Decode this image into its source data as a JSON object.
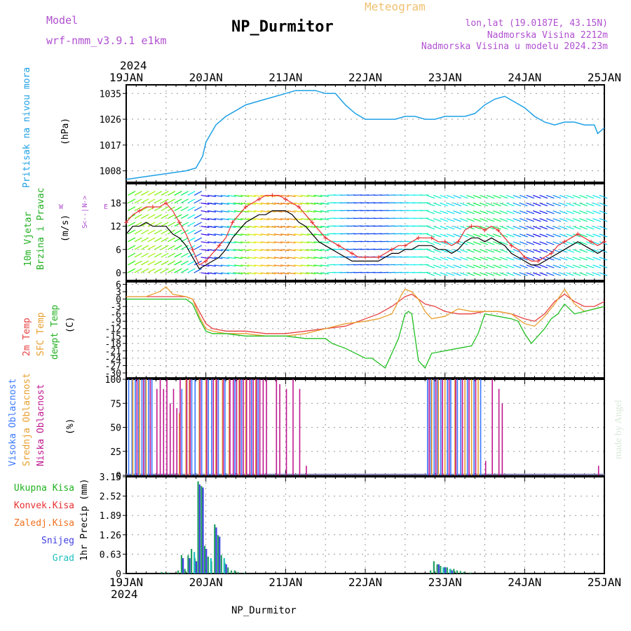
{
  "header": {
    "model_label": "Model",
    "model_name": "wrf-nmm_v3.9.1 e1km",
    "station": "NP_Durmitor",
    "product": "Meteogram",
    "lonlat": "lon,lat (19.0187E, 43.15N)",
    "elevation": "Nadmorska Visina 2212m",
    "model_elevation": "Nadmorska Visina u modelu 2024.23m",
    "year": "2024",
    "footer_station": "NP_Durmitor",
    "credit": "made by Angel"
  },
  "colors": {
    "pressure": "#1ea0e6",
    "wind_speed": "#000000",
    "gust": "#e83030",
    "temp2m": "#e84040",
    "sfc_temp": "#e8a030",
    "dewpoint": "#20c020",
    "high_cloud": "#3a78ff",
    "mid_cloud": "#e8a030",
    "low_cloud": "#c01890",
    "total_precip": "#20a060",
    "conv_precip": "#e83030",
    "freezing_rain": "#f07020",
    "snow": "#4040e0",
    "graupel": "#20c0c0",
    "label_purple": "#b050d0",
    "label_blue": "#1ea0e6",
    "label_green": "#20b020"
  },
  "chart_data": [
    {
      "type": "line",
      "panel": "pressure",
      "ylabel": "(hPa)",
      "side_label": "Pritisak na nivou mora",
      "yticks": [
        1008,
        1017,
        1026,
        1035
      ],
      "ylim": [
        1004,
        1038
      ],
      "xlim_hours": [
        0,
        144
      ],
      "xtick_labels": [
        "19JAN",
        "20JAN",
        "21JAN",
        "22JAN",
        "23JAN",
        "24JAN",
        "25JAN"
      ],
      "grid": true,
      "series": [
        {
          "x": [
            0,
            6,
            12,
            18,
            21,
            23,
            24,
            25,
            27,
            30,
            33,
            36,
            39,
            42,
            45,
            48,
            51,
            54,
            57,
            60,
            63,
            66,
            69,
            72,
            75,
            78,
            81,
            84,
            87,
            90,
            93,
            96,
            99,
            102,
            105,
            108,
            111,
            114,
            117,
            120,
            123,
            126,
            129,
            132,
            135,
            138,
            141,
            142,
            144
          ],
          "y": [
            1005,
            1006,
            1007,
            1008,
            1009,
            1013,
            1018,
            1020,
            1024,
            1027,
            1029,
            1031,
            1032,
            1033,
            1034,
            1035,
            1036,
            1036,
            1036,
            1035,
            1035,
            1031,
            1028,
            1026,
            1026,
            1026,
            1026,
            1027,
            1027,
            1026,
            1026,
            1027,
            1027,
            1027,
            1028,
            1031,
            1033,
            1034,
            1032,
            1030,
            1027,
            1025,
            1024,
            1025,
            1025,
            1024,
            1024,
            1021,
            1023
          ]
        }
      ]
    },
    {
      "type": "line",
      "panel": "wind",
      "ylabel": "(m/s)",
      "side_label": "10m Vjetar Brzina i Pravac",
      "compass": [
        "N",
        "E",
        "W",
        "S"
      ],
      "yticks": [
        0,
        6,
        12,
        18
      ],
      "ylim": [
        -2,
        23
      ],
      "grid": true,
      "series": [
        {
          "name": "speed",
          "x": [
            0,
            2,
            4,
            6,
            8,
            10,
            12,
            14,
            16,
            18,
            20,
            22,
            24,
            26,
            28,
            30,
            32,
            34,
            36,
            38,
            40,
            42,
            44,
            46,
            48,
            50,
            52,
            54,
            56,
            58,
            60,
            62,
            64,
            66,
            68,
            70,
            72,
            74,
            76,
            78,
            80,
            82,
            84,
            86,
            88,
            90,
            92,
            94,
            96,
            98,
            100,
            102,
            104,
            106,
            108,
            110,
            112,
            114,
            116,
            118,
            120,
            122,
            124,
            126,
            128,
            130,
            132,
            134,
            136,
            138,
            140,
            142,
            144
          ],
          "y": [
            10,
            12,
            12,
            13,
            12,
            12,
            12,
            10,
            9,
            7,
            4,
            1,
            2,
            3,
            4,
            6,
            9,
            11,
            13,
            14,
            15,
            15,
            16,
            16,
            16,
            15,
            13,
            12,
            10,
            8,
            7,
            6,
            5,
            4,
            3,
            3,
            3,
            3,
            3,
            4,
            5,
            5,
            6,
            6,
            7,
            7,
            7,
            6,
            6,
            5,
            6,
            8,
            9,
            9,
            8,
            9,
            8,
            7,
            5,
            4,
            3,
            2,
            2,
            3,
            4,
            5,
            6,
            7,
            8,
            7,
            6,
            5,
            6
          ]
        },
        {
          "name": "gust",
          "x": [
            0,
            2,
            4,
            6,
            8,
            10,
            12,
            14,
            16,
            18,
            20,
            22,
            24,
            26,
            28,
            30,
            32,
            34,
            36,
            38,
            40,
            42,
            44,
            46,
            48,
            50,
            52,
            54,
            56,
            58,
            60,
            62,
            64,
            66,
            68,
            70,
            72,
            74,
            76,
            78,
            80,
            82,
            84,
            86,
            88,
            90,
            92,
            94,
            96,
            98,
            100,
            102,
            104,
            106,
            108,
            110,
            112,
            114,
            116,
            118,
            120,
            122,
            124,
            126,
            128,
            130,
            132,
            134,
            136,
            138,
            140,
            142,
            144
          ],
          "y": [
            13,
            15,
            16,
            17,
            17,
            17,
            18,
            16,
            13,
            10,
            6,
            2,
            3,
            5,
            7,
            9,
            13,
            15,
            17,
            18,
            19,
            20,
            20,
            20,
            19,
            18,
            17,
            15,
            13,
            11,
            9,
            8,
            7,
            6,
            5,
            4,
            4,
            4,
            4,
            5,
            6,
            7,
            7,
            8,
            9,
            9,
            9,
            8,
            8,
            7,
            8,
            11,
            12,
            12,
            11,
            12,
            11,
            9,
            7,
            6,
            4,
            3,
            3,
            4,
            5,
            7,
            8,
            9,
            10,
            9,
            8,
            7,
            8
          ]
        }
      ]
    },
    {
      "type": "line",
      "panel": "temperature",
      "ylabel": "(C)",
      "side_labels": [
        "2m Temp",
        "SFC Temp",
        "dewpt Temp"
      ],
      "yticks": [
        6,
        3,
        0,
        -3,
        -6,
        -9,
        -12,
        -15,
        -18,
        -21,
        -24,
        -27,
        -30
      ],
      "ylim": [
        -32,
        7
      ],
      "grid": true,
      "series": [
        {
          "name": "2m Temp",
          "x": [
            0,
            6,
            12,
            18,
            20,
            22,
            24,
            26,
            30,
            36,
            42,
            48,
            54,
            60,
            66,
            72,
            76,
            80,
            84,
            86,
            88,
            90,
            93,
            96,
            100,
            104,
            108,
            112,
            116,
            120,
            123,
            126,
            129,
            132,
            135,
            138,
            141,
            144
          ],
          "y": [
            1,
            1,
            1,
            1,
            0,
            -5,
            -10,
            -12,
            -13,
            -13,
            -14,
            -14,
            -13,
            -12,
            -11,
            -8,
            -6,
            -3,
            1,
            2,
            0,
            -2,
            -3,
            -5,
            -6,
            -6,
            -5,
            -5,
            -6,
            -8,
            -9,
            -6,
            -1,
            2,
            -1,
            -3,
            -3,
            -1
          ]
        },
        {
          "name": "SFC Temp",
          "x": [
            0,
            6,
            10,
            12,
            14,
            18,
            20,
            22,
            24,
            26,
            30,
            36,
            42,
            48,
            54,
            60,
            66,
            72,
            76,
            80,
            83,
            84,
            86,
            88,
            90,
            92,
            96,
            100,
            104,
            108,
            112,
            116,
            120,
            123,
            126,
            129,
            132,
            135,
            138,
            141,
            144
          ],
          "y": [
            1,
            1,
            3,
            5,
            2,
            1,
            0,
            -7,
            -12,
            -13,
            -14,
            -14,
            -15,
            -15,
            -14,
            -12,
            -10,
            -9,
            -8,
            -6,
            2,
            4,
            3,
            0,
            -5,
            -8,
            -7,
            -4,
            -5,
            -5,
            -5,
            -6,
            -10,
            -11,
            -7,
            -2,
            4,
            -2,
            -5,
            -4,
            -3
          ]
        },
        {
          "name": "dewpt Temp",
          "x": [
            0,
            6,
            12,
            18,
            20,
            22,
            24,
            26,
            30,
            36,
            42,
            48,
            54,
            60,
            62,
            66,
            72,
            74,
            76,
            78,
            80,
            82,
            84,
            85,
            86,
            88,
            90,
            92,
            96,
            100,
            104,
            106,
            108,
            112,
            116,
            118,
            120,
            122,
            124,
            126,
            128,
            130,
            132,
            135,
            138,
            141,
            144
          ],
          "y": [
            0,
            0,
            0,
            0,
            -2,
            -8,
            -13,
            -14,
            -14,
            -15,
            -15,
            -15,
            -16,
            -16,
            -18,
            -20,
            -24,
            -24,
            -26,
            -28,
            -22,
            -16,
            -6,
            -5,
            -6,
            -25,
            -28,
            -22,
            -21,
            -20,
            -19,
            -14,
            -6,
            -7,
            -8,
            -9,
            -14,
            -18,
            -15,
            -12,
            -8,
            -6,
            -2,
            -6,
            -5,
            -4,
            -3
          ]
        }
      ]
    },
    {
      "type": "bar",
      "panel": "cloud",
      "ylabel": "(%)",
      "side_labels": [
        "Visoka Oblacnost",
        "Srednja Oblacnost",
        "Niska Oblacnost"
      ],
      "yticks": [
        0,
        25,
        50,
        75,
        100
      ],
      "ylim": [
        0,
        100
      ],
      "grid": true,
      "series": [
        {
          "name": "Visoka Oblacnost",
          "x": [
            1,
            2,
            3,
            4,
            5,
            6,
            7,
            8,
            17,
            20,
            21,
            23,
            25,
            26,
            28,
            30,
            33,
            35,
            38,
            40,
            91,
            92,
            93,
            94,
            95,
            97,
            98,
            100,
            101,
            103,
            105,
            107
          ],
          "y": [
            100,
            100,
            100,
            100,
            100,
            100,
            100,
            100,
            90,
            100,
            100,
            100,
            100,
            100,
            100,
            100,
            100,
            100,
            100,
            100,
            100,
            100,
            100,
            100,
            100,
            100,
            100,
            100,
            100,
            100,
            100,
            100
          ]
        },
        {
          "name": "Srednja Oblacnost",
          "x": [
            2,
            4,
            6,
            16,
            18,
            19,
            22,
            24,
            27,
            29,
            31,
            34,
            36,
            39,
            92,
            94,
            96,
            99,
            102,
            104,
            106
          ],
          "y": [
            100,
            100,
            100,
            65,
            100,
            100,
            100,
            100,
            100,
            100,
            100,
            100,
            100,
            100,
            100,
            100,
            100,
            100,
            100,
            100,
            100
          ]
        },
        {
          "name": "Niska Oblacnost",
          "x": [
            3,
            5,
            7,
            9,
            10,
            11,
            12,
            13,
            14,
            15,
            16,
            18,
            19,
            22,
            24,
            26,
            27,
            29,
            31,
            32,
            33,
            34,
            35,
            36,
            37,
            38,
            39,
            40,
            41,
            42,
            45,
            46,
            48,
            50,
            52,
            54,
            91,
            93,
            95,
            97,
            99,
            101,
            103,
            105,
            108,
            110,
            112,
            113,
            142
          ],
          "y": [
            100,
            100,
            100,
            90,
            100,
            90,
            100,
            75,
            90,
            70,
            100,
            100,
            100,
            100,
            100,
            100,
            100,
            100,
            100,
            100,
            100,
            100,
            100,
            100,
            100,
            100,
            100,
            100,
            100,
            100,
            100,
            95,
            90,
            100,
            90,
            10,
            100,
            100,
            100,
            100,
            100,
            100,
            100,
            100,
            15,
            100,
            90,
            75,
            10
          ]
        }
      ]
    },
    {
      "type": "bar",
      "panel": "precipitation",
      "ylabel": "1hr Precip (mm)",
      "side_labels": [
        "Ukupna Kisa",
        "Konvek.Kisa",
        "Zaledj.Kisa",
        "Snijeg",
        "Grad"
      ],
      "yticks": [
        0,
        0.63,
        1.26,
        1.89,
        2.52,
        3.15
      ],
      "ylim": [
        0,
        3.15
      ],
      "grid": true,
      "series": [
        {
          "name": "Ukupna Kisa",
          "x": [
            11,
            12,
            13,
            16,
            17,
            18,
            19,
            20,
            21,
            22,
            23,
            24,
            25,
            26,
            27,
            28,
            29,
            30,
            31,
            32,
            33,
            34,
            36,
            92,
            93,
            94,
            95,
            96,
            97,
            98,
            99,
            100,
            101,
            102,
            104
          ],
          "y": [
            0.05,
            0.03,
            0.03,
            0.1,
            0.6,
            0.15,
            0.6,
            0.8,
            0.5,
            3.0,
            2.85,
            0.9,
            0.55,
            0.4,
            1.6,
            1.25,
            0.6,
            0.35,
            0.2,
            0.1,
            0.1,
            0.05,
            0.03,
            0.1,
            0.4,
            0.3,
            0.25,
            0.2,
            0.2,
            0.15,
            0.15,
            0.1,
            0.08,
            0.05,
            0.03
          ]
        },
        {
          "name": "Snijeg",
          "x": [
            17,
            19,
            21,
            22,
            23,
            24,
            27,
            28,
            30,
            94,
            96,
            98
          ],
          "y": [
            0.5,
            0.5,
            0.4,
            2.9,
            2.8,
            0.8,
            1.5,
            1.2,
            0.3,
            0.3,
            0.2,
            0.1
          ]
        },
        {
          "name": "Grad",
          "x": [
            20,
            25,
            29,
            95,
            97
          ],
          "y": [
            0.7,
            0.5,
            0.5,
            0.2,
            0.15
          ]
        }
      ]
    }
  ]
}
